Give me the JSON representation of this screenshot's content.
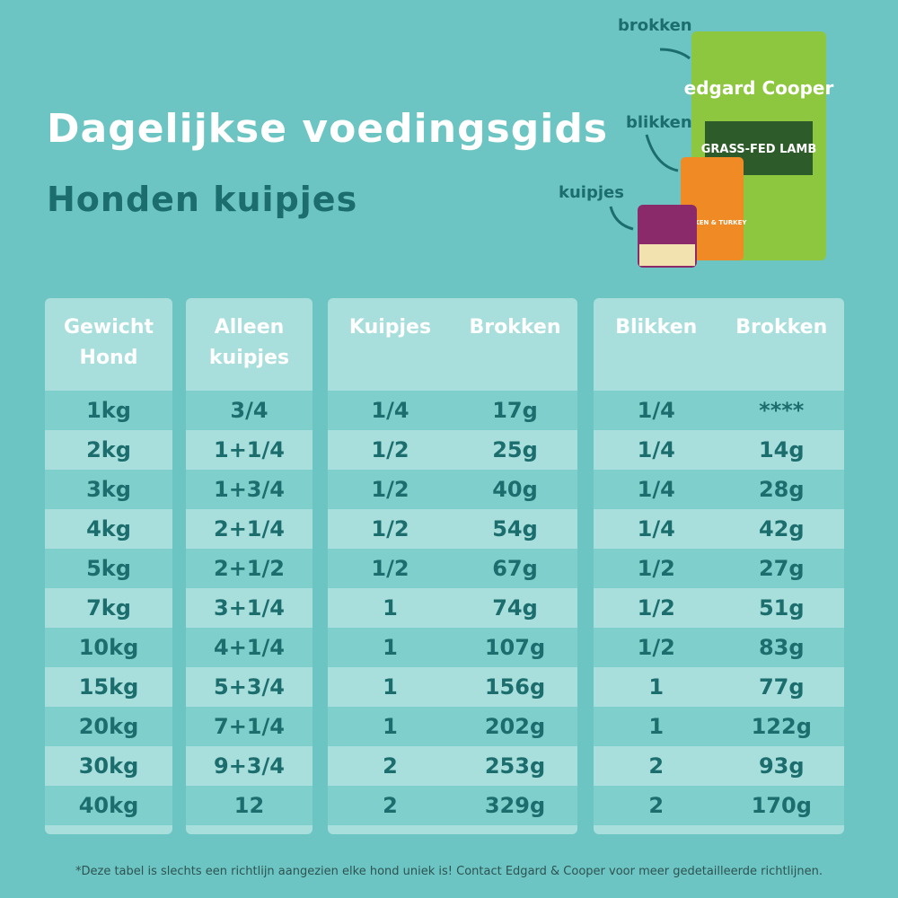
{
  "header": {
    "title": "Dagelijkse voedingsgids",
    "subtitle": "Honden kuipjes"
  },
  "product_labels": [
    "brokken",
    "blikken",
    "kuipjes"
  ],
  "packaging": {
    "brand": "edgard Cooper",
    "bag": "GRASS-FED LAMB",
    "can": "CHICKEN & TURKEY"
  },
  "table": {
    "headers": [
      "Gewicht Hond",
      "Alleen kuipjes",
      "Kuipjes",
      "Brokken",
      "Blikken",
      "Brokken"
    ],
    "rows": [
      [
        "1kg",
        "3/4",
        "1/4",
        "17g",
        "1/4",
        "****"
      ],
      [
        "2kg",
        "1+1/4",
        "1/2",
        "25g",
        "1/4",
        "14g"
      ],
      [
        "3kg",
        "1+3/4",
        "1/2",
        "40g",
        "1/4",
        "28g"
      ],
      [
        "4kg",
        "2+1/4",
        "1/2",
        "54g",
        "1/4",
        "42g"
      ],
      [
        "5kg",
        "2+1/2",
        "1/2",
        "67g",
        "1/2",
        "27g"
      ],
      [
        "7kg",
        "3+1/4",
        "1",
        "74g",
        "1/2",
        "51g"
      ],
      [
        "10kg",
        "4+1/4",
        "1",
        "107g",
        "1/2",
        "83g"
      ],
      [
        "15kg",
        "5+3/4",
        "1",
        "156g",
        "1",
        "77g"
      ],
      [
        "20kg",
        "7+1/4",
        "1",
        "202g",
        "1",
        "122g"
      ],
      [
        "30kg",
        "9+3/4",
        "2",
        "253g",
        "2",
        "93g"
      ],
      [
        "40kg",
        "12",
        "2",
        "329g",
        "2",
        "170g"
      ]
    ]
  },
  "footnote": "*Deze tabel is slechts een richtlijn aangezien elke hond uniek is! Contact Edgard & Cooper voor meer gedetailleerde richtlijnen."
}
